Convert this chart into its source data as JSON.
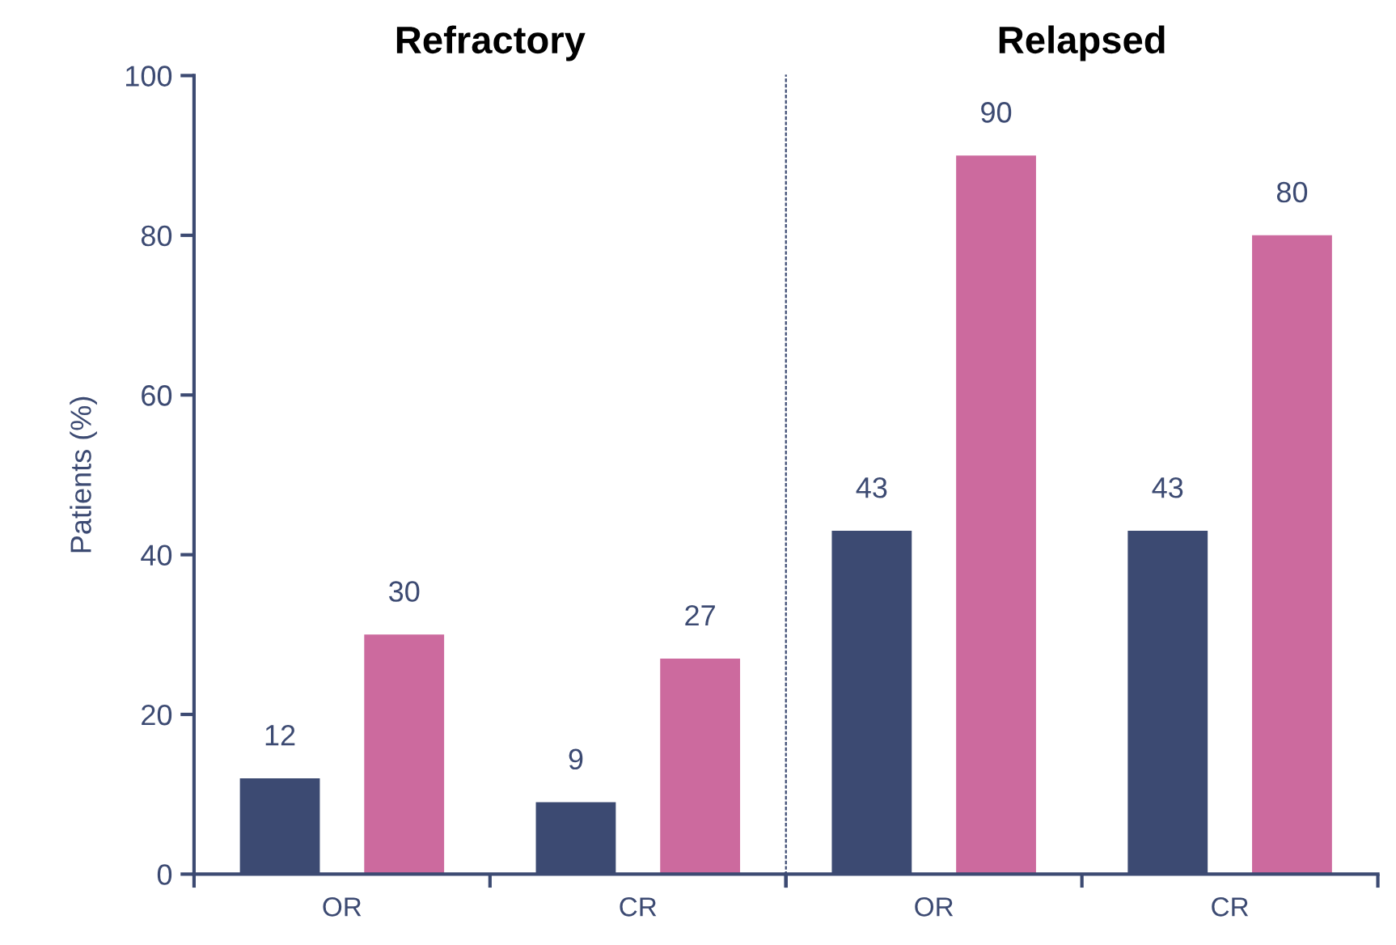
{
  "chart_data": [
    {
      "type": "bar",
      "title": "Refractory",
      "ylabel": "Patients (%)",
      "categories": [
        "OR",
        "CR"
      ],
      "ylim": [
        0,
        100
      ],
      "yticks": [
        0,
        20,
        40,
        60,
        80,
        100
      ],
      "data_labels": true,
      "grid": false,
      "series": [
        {
          "color": "#3c4a72",
          "values": [
            12,
            9
          ]
        },
        {
          "color": "#cc6a9e",
          "values": [
            30,
            27
          ]
        }
      ]
    },
    {
      "type": "bar",
      "title": "Relapsed",
      "categories": [
        "OR",
        "CR"
      ],
      "ylim": [
        0,
        100
      ],
      "yticks": [
        0,
        20,
        40,
        60,
        80,
        100
      ],
      "data_labels": true,
      "grid": false,
      "tick_labels": "x",
      "series": [
        {
          "color": "#3c4a72",
          "values": [
            43,
            43
          ]
        },
        {
          "color": "#cc6a9e",
          "values": [
            90,
            80
          ]
        }
      ]
    }
  ]
}
